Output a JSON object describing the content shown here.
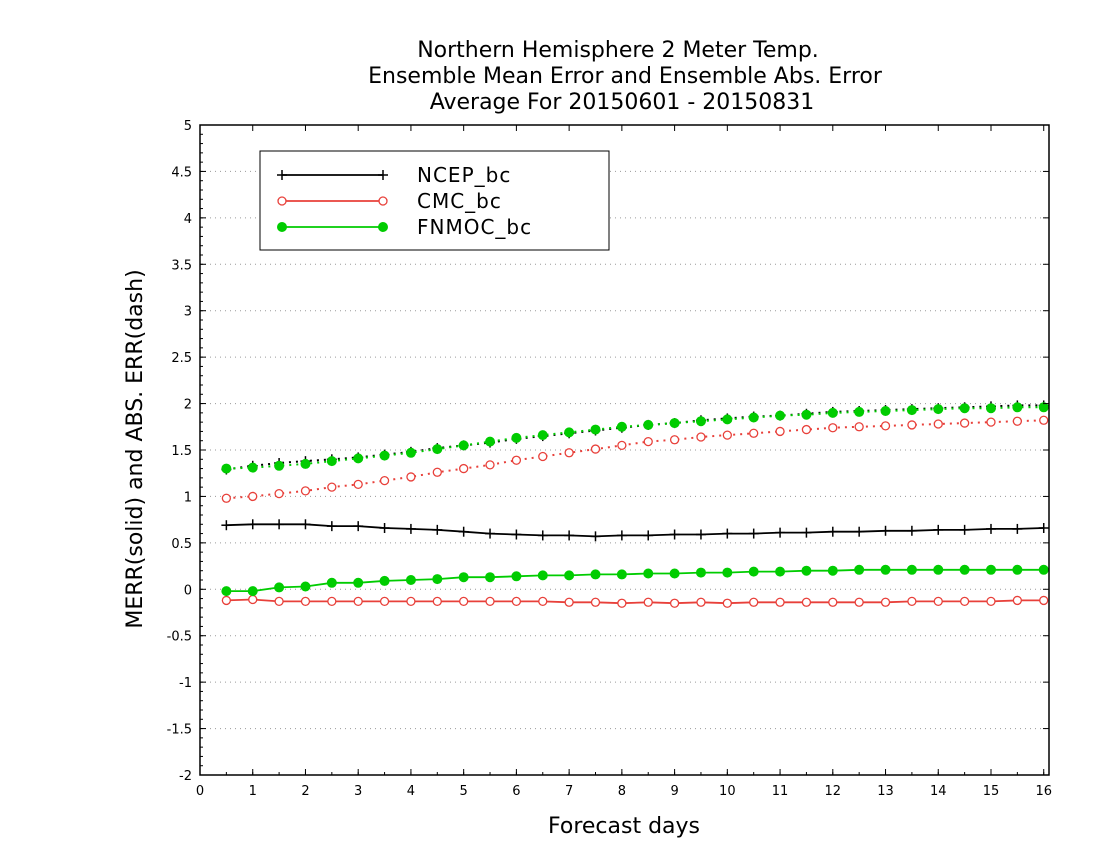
{
  "chart_data": {
    "type": "line",
    "title": [
      "Northern Hemisphere 2 Meter Temp.",
      "Ensemble Mean Error and Ensemble Abs. Error",
      "Average For 20150601 - 20150831"
    ],
    "xlabel": "Forecast days",
    "ylabel": "MERR(solid) and ABS. ERR(dash)",
    "xlim": [
      0,
      16.1
    ],
    "ylim": [
      -2,
      5
    ],
    "x_ticks": [
      0,
      1,
      2,
      3,
      4,
      5,
      6,
      7,
      8,
      9,
      10,
      11,
      12,
      13,
      14,
      15,
      16
    ],
    "x_tick_labels": [
      "0",
      "1",
      "2",
      "3",
      "4",
      "5",
      "6",
      "7",
      "8",
      "9",
      "10",
      "11",
      "12",
      "13",
      "14",
      "15",
      "16"
    ],
    "y_ticks": [
      -2,
      -1.5,
      -1,
      -0.5,
      0,
      0.5,
      1,
      1.5,
      2,
      2.5,
      3,
      3.5,
      4,
      4.5,
      5
    ],
    "y_tick_labels": [
      "-2",
      "-1.5",
      "-1",
      "-0.5",
      "0",
      "0.5",
      "1",
      "1.5",
      "2",
      "2.5",
      "3",
      "3.5",
      "4",
      "4.5",
      "5"
    ],
    "grid": "horizontal dotted",
    "legend_position": "top-left",
    "x": [
      0.5,
      1,
      1.5,
      2,
      2.5,
      3,
      3.5,
      4,
      4.5,
      5,
      5.5,
      6,
      6.5,
      7,
      7.5,
      8,
      8.5,
      9,
      9.5,
      10,
      10.5,
      11,
      11.5,
      12,
      12.5,
      13,
      13.5,
      14,
      14.5,
      15,
      15.5,
      16
    ],
    "series": [
      {
        "name": "NCEP_bc",
        "color": "#000000",
        "marker": "plus",
        "merr": [
          0.69,
          0.7,
          0.7,
          0.7,
          0.68,
          0.68,
          0.66,
          0.65,
          0.64,
          0.62,
          0.6,
          0.59,
          0.58,
          0.58,
          0.57,
          0.58,
          0.58,
          0.59,
          0.59,
          0.6,
          0.6,
          0.61,
          0.61,
          0.62,
          0.62,
          0.63,
          0.63,
          0.64,
          0.64,
          0.65,
          0.65,
          0.66
        ],
        "abs_err": [
          1.29,
          1.33,
          1.36,
          1.38,
          1.4,
          1.42,
          1.45,
          1.48,
          1.52,
          1.55,
          1.58,
          1.62,
          1.65,
          1.68,
          1.71,
          1.74,
          1.77,
          1.79,
          1.82,
          1.84,
          1.86,
          1.87,
          1.89,
          1.91,
          1.92,
          1.93,
          1.94,
          1.95,
          1.96,
          1.97,
          1.98,
          1.98
        ]
      },
      {
        "name": "CMC_bc",
        "color": "#e8403a",
        "marker": "open-circle",
        "merr": [
          -0.12,
          -0.11,
          -0.13,
          -0.13,
          -0.13,
          -0.13,
          -0.13,
          -0.13,
          -0.13,
          -0.13,
          -0.13,
          -0.13,
          -0.13,
          -0.14,
          -0.14,
          -0.15,
          -0.14,
          -0.15,
          -0.14,
          -0.15,
          -0.14,
          -0.14,
          -0.14,
          -0.14,
          -0.14,
          -0.14,
          -0.13,
          -0.13,
          -0.13,
          -0.13,
          -0.12,
          -0.12
        ],
        "abs_err": [
          0.98,
          1.0,
          1.03,
          1.06,
          1.1,
          1.13,
          1.17,
          1.21,
          1.26,
          1.3,
          1.34,
          1.39,
          1.43,
          1.47,
          1.51,
          1.55,
          1.59,
          1.61,
          1.64,
          1.66,
          1.68,
          1.7,
          1.72,
          1.74,
          1.75,
          1.76,
          1.77,
          1.78,
          1.79,
          1.8,
          1.81,
          1.82
        ]
      },
      {
        "name": "FNMOC_bc",
        "color": "#00cc00",
        "marker": "filled-circle",
        "merr": [
          -0.02,
          -0.02,
          0.02,
          0.03,
          0.07,
          0.07,
          0.09,
          0.1,
          0.11,
          0.13,
          0.13,
          0.14,
          0.15,
          0.15,
          0.16,
          0.16,
          0.17,
          0.17,
          0.18,
          0.18,
          0.19,
          0.19,
          0.2,
          0.2,
          0.21,
          0.21,
          0.21,
          0.21,
          0.21,
          0.21,
          0.21,
          0.21
        ],
        "abs_err": [
          1.3,
          1.31,
          1.33,
          1.35,
          1.38,
          1.41,
          1.44,
          1.47,
          1.51,
          1.55,
          1.59,
          1.63,
          1.66,
          1.69,
          1.72,
          1.75,
          1.77,
          1.79,
          1.81,
          1.83,
          1.85,
          1.87,
          1.88,
          1.9,
          1.91,
          1.92,
          1.93,
          1.94,
          1.95,
          1.95,
          1.96,
          1.96
        ]
      }
    ]
  }
}
